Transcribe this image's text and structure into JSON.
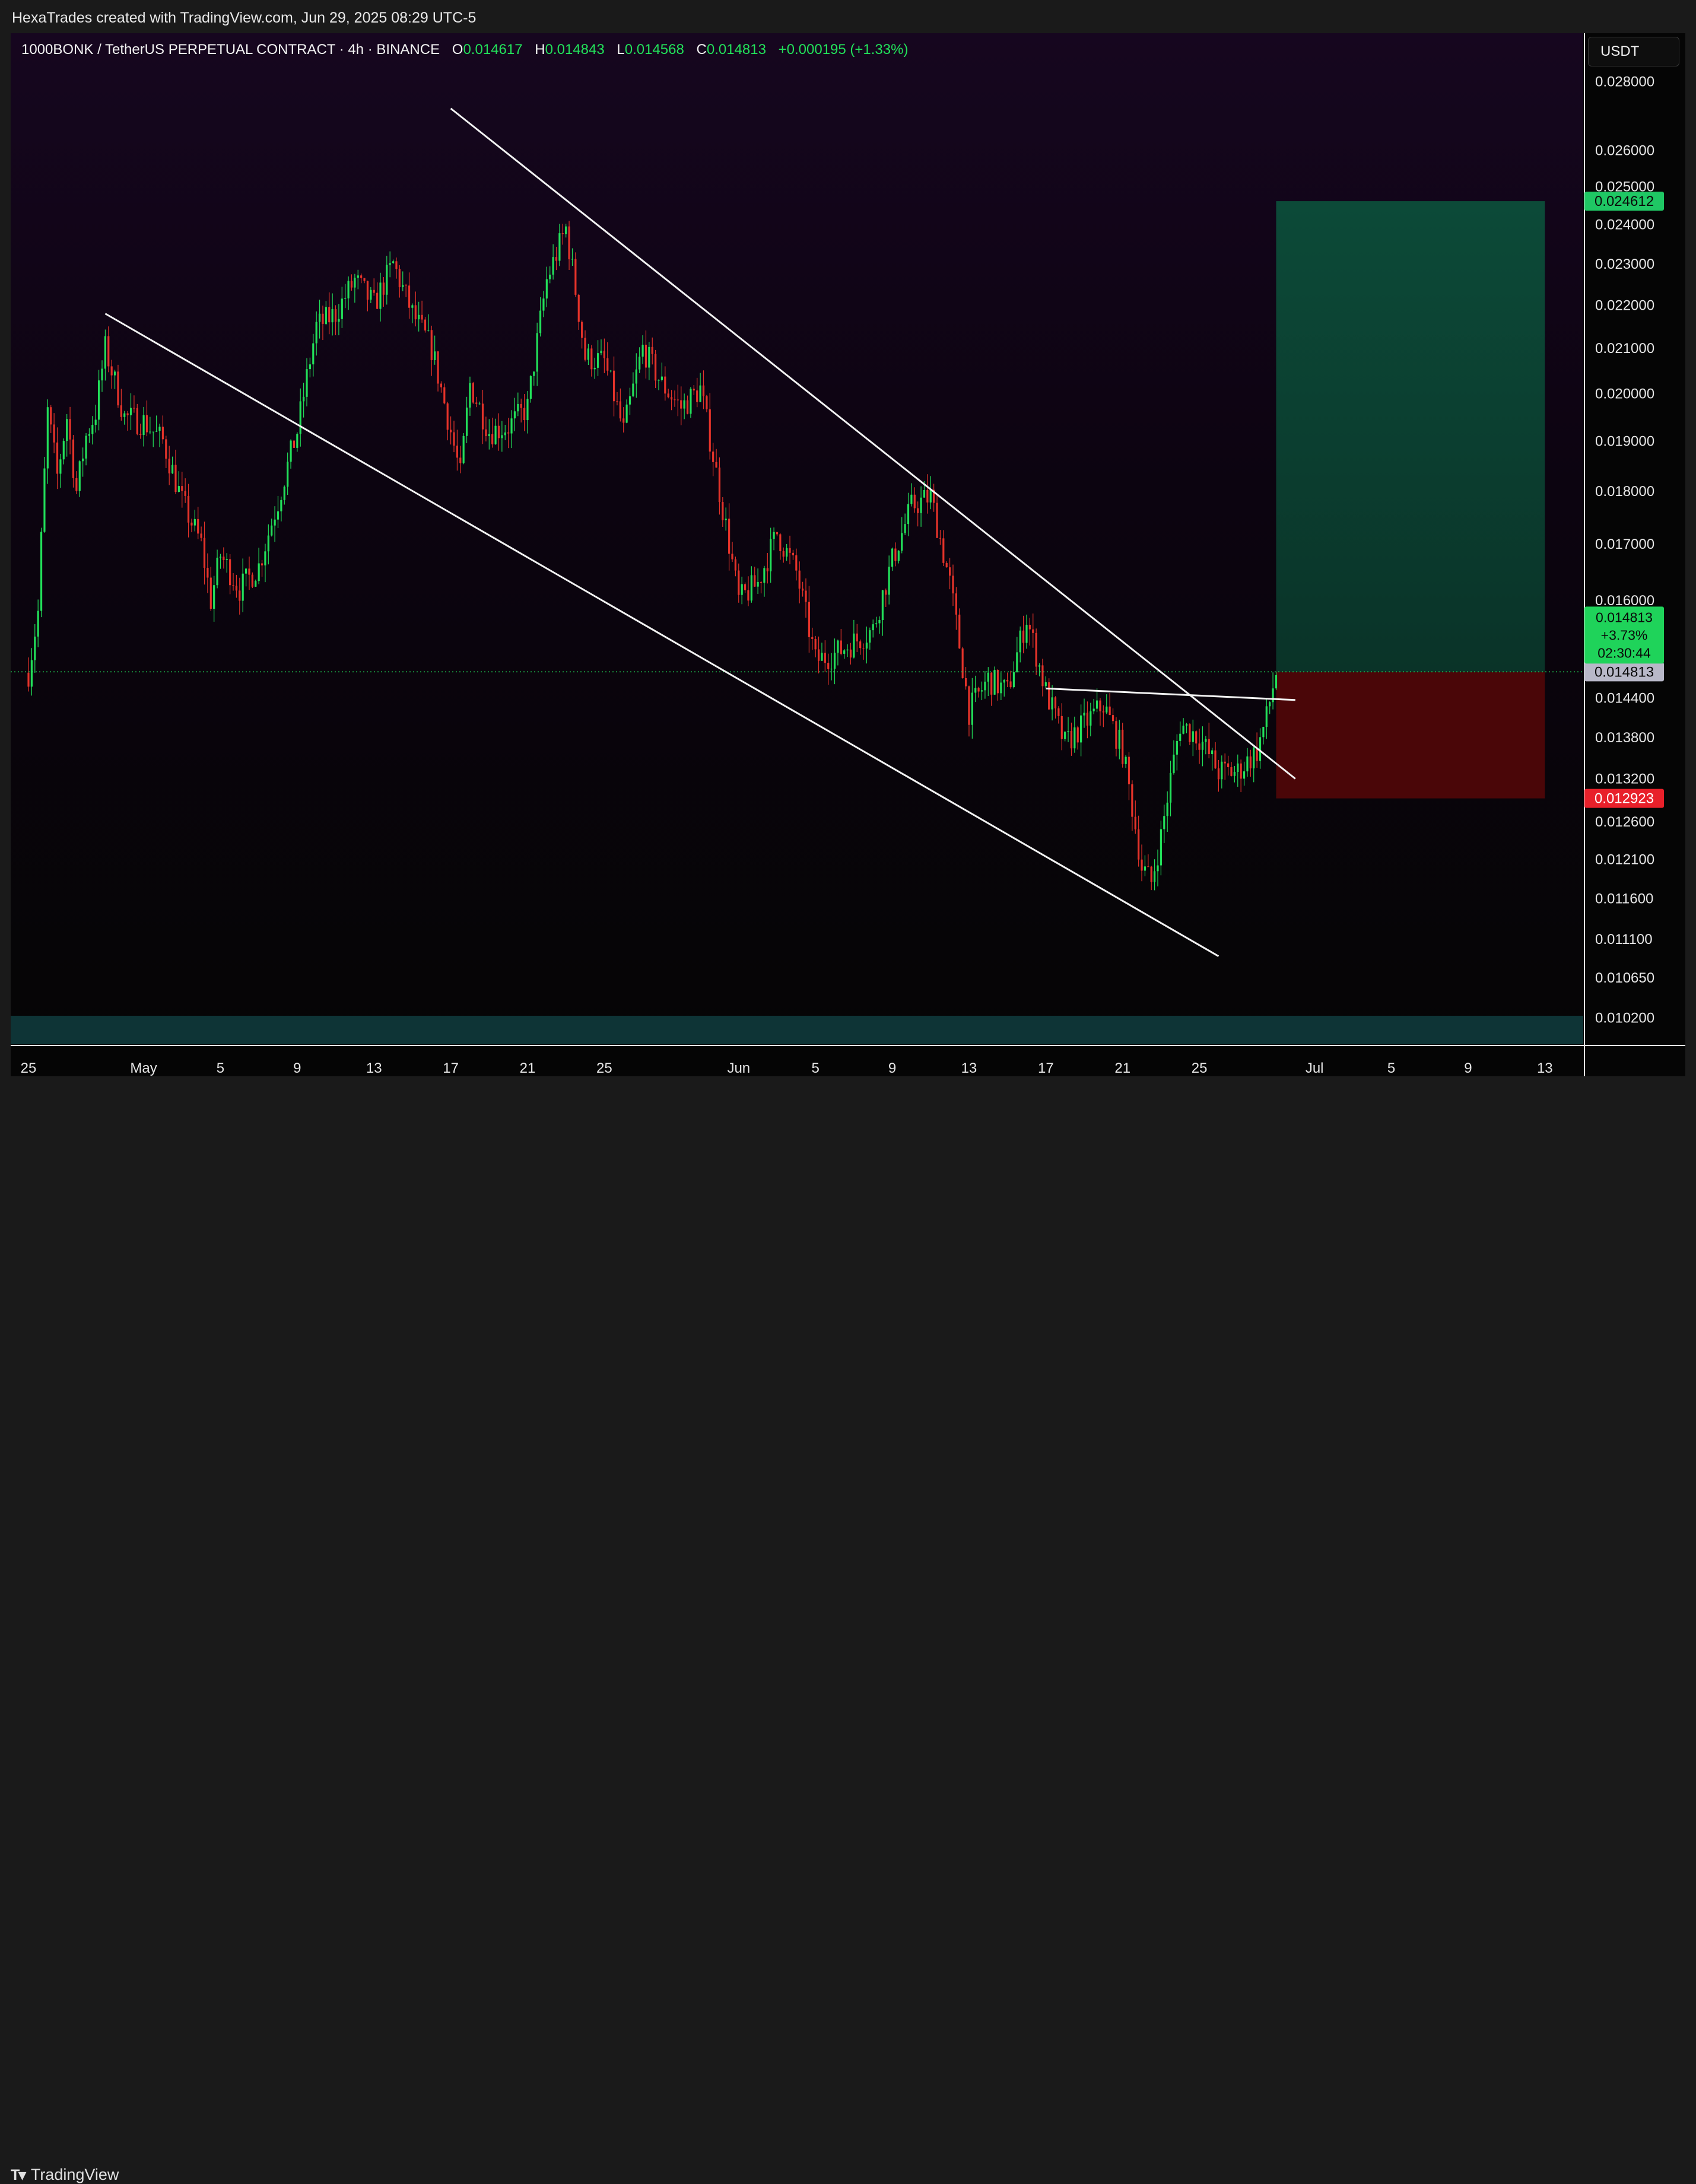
{
  "header": {
    "credit": "HexaTrades created with TradingView.com, Jun 29, 2025 08:29 UTC-5"
  },
  "legend": {
    "symbol": "1000BONK / TetherUS PERPETUAL CONTRACT · 4h · BINANCE",
    "o_label": "O",
    "o": "0.014617",
    "h_label": "H",
    "h": "0.014843",
    "l_label": "L",
    "l": "0.014568",
    "c_label": "C",
    "c": "0.014813",
    "change": "+0.000195 (+1.33%)"
  },
  "toolbar": {
    "currency": "USDT"
  },
  "footer": {
    "brand": "TradingView",
    "logo_icon": "tradingview-logo-icon"
  },
  "colors": {
    "up": "#22e05a",
    "down": "#e5332a",
    "bg_top": "#14061f",
    "bg_bottom": "#050505",
    "target_zone": "#0b4a35",
    "stop_zone": "#4a0608",
    "trendline": "#f2f2f2"
  },
  "chart_data": {
    "type": "candlestick",
    "timeframe": "4h",
    "x_ticks": [
      {
        "date": "2025-04-25",
        "label": "25"
      },
      {
        "date": "2025-05-01",
        "label": "May"
      },
      {
        "date": "2025-05-05",
        "label": "5"
      },
      {
        "date": "2025-05-09",
        "label": "9"
      },
      {
        "date": "2025-05-13",
        "label": "13"
      },
      {
        "date": "2025-05-17",
        "label": "17"
      },
      {
        "date": "2025-05-21",
        "label": "21"
      },
      {
        "date": "2025-05-25",
        "label": "25"
      },
      {
        "date": "2025-06-01",
        "label": "Jun"
      },
      {
        "date": "2025-06-05",
        "label": "5"
      },
      {
        "date": "2025-06-09",
        "label": "9"
      },
      {
        "date": "2025-06-13",
        "label": "13"
      },
      {
        "date": "2025-06-17",
        "label": "17"
      },
      {
        "date": "2025-06-21",
        "label": "21"
      },
      {
        "date": "2025-06-25",
        "label": "25"
      },
      {
        "date": "2025-07-01",
        "label": "Jul"
      },
      {
        "date": "2025-07-05",
        "label": "5"
      },
      {
        "date": "2025-07-09",
        "label": "9"
      },
      {
        "date": "2025-07-13",
        "label": "13"
      }
    ],
    "x_range": [
      "2025-04-25",
      "2025-07-15"
    ],
    "y_scale": "log",
    "y_ticks": [
      "0.028000",
      "0.026000",
      "0.025000",
      "0.024000",
      "0.023000",
      "0.022000",
      "0.021000",
      "0.020000",
      "0.019000",
      "0.018000",
      "0.017000",
      "0.016000",
      "0.014400",
      "0.013800",
      "0.013200",
      "0.012600",
      "0.012100",
      "0.011600",
      "0.011100",
      "0.010650",
      "0.010200"
    ],
    "y_range": [
      0.0099,
      0.0295
    ],
    "price_path": [
      [
        "2025-04-25",
        0.0148
      ],
      [
        "2025-04-25T12:00",
        0.0158
      ],
      [
        "2025-04-26",
        0.0196
      ],
      [
        "2025-04-26T12:00",
        0.0183
      ],
      [
        "2025-04-27",
        0.0195
      ],
      [
        "2025-04-27T12:00",
        0.018
      ],
      [
        "2025-04-28",
        0.0191
      ],
      [
        "2025-04-28T12:00",
        0.0196
      ],
      [
        "2025-04-29",
        0.021
      ],
      [
        "2025-04-30",
        0.0195
      ],
      [
        "2025-05-01",
        0.0194
      ],
      [
        "2025-05-02",
        0.019
      ],
      [
        "2025-05-03",
        0.0178
      ],
      [
        "2025-05-04",
        0.017
      ],
      [
        "2025-05-04T12:00",
        0.016
      ],
      [
        "2025-05-05",
        0.0168
      ],
      [
        "2025-05-06",
        0.0162
      ],
      [
        "2025-05-07",
        0.0166
      ],
      [
        "2025-05-08",
        0.0178
      ],
      [
        "2025-05-09",
        0.0192
      ],
      [
        "2025-05-10",
        0.0215
      ],
      [
        "2025-05-11",
        0.0218
      ],
      [
        "2025-05-12",
        0.0226
      ],
      [
        "2025-05-13",
        0.022
      ],
      [
        "2025-05-14",
        0.023
      ],
      [
        "2025-05-15",
        0.0218
      ],
      [
        "2025-05-16",
        0.021
      ],
      [
        "2025-05-17",
        0.0192
      ],
      [
        "2025-05-17T12:00",
        0.0183
      ],
      [
        "2025-05-18",
        0.0202
      ],
      [
        "2025-05-19",
        0.0192
      ],
      [
        "2025-05-20",
        0.0193
      ],
      [
        "2025-05-21",
        0.0197
      ],
      [
        "2025-05-22",
        0.0226
      ],
      [
        "2025-05-23",
        0.0239
      ],
      [
        "2025-05-24",
        0.0208
      ],
      [
        "2025-05-25",
        0.0207
      ],
      [
        "2025-05-26",
        0.0192
      ],
      [
        "2025-05-27",
        0.021
      ],
      [
        "2025-05-28",
        0.0202
      ],
      [
        "2025-05-29",
        0.0197
      ],
      [
        "2025-05-30",
        0.0201
      ],
      [
        "2025-05-31",
        0.018
      ],
      [
        "2025-06-01",
        0.016
      ],
      [
        "2025-06-02",
        0.0163
      ],
      [
        "2025-06-03",
        0.0172
      ],
      [
        "2025-06-04",
        0.0165
      ],
      [
        "2025-06-05",
        0.015
      ],
      [
        "2025-06-06",
        0.0151
      ],
      [
        "2025-06-07",
        0.0153
      ],
      [
        "2025-06-08",
        0.0155
      ],
      [
        "2025-06-09",
        0.0167
      ],
      [
        "2025-06-10",
        0.0177
      ],
      [
        "2025-06-11",
        0.0179
      ],
      [
        "2025-06-12",
        0.0163
      ],
      [
        "2025-06-13",
        0.0142
      ],
      [
        "2025-06-14",
        0.0147
      ],
      [
        "2025-06-15",
        0.0145
      ],
      [
        "2025-06-16",
        0.0157
      ],
      [
        "2025-06-17",
        0.0145
      ],
      [
        "2025-06-18",
        0.0137
      ],
      [
        "2025-06-19",
        0.014
      ],
      [
        "2025-06-20",
        0.0143
      ],
      [
        "2025-06-21",
        0.0136
      ],
      [
        "2025-06-22",
        0.012
      ],
      [
        "2025-06-22T12:00",
        0.0118
      ],
      [
        "2025-06-23",
        0.0124
      ],
      [
        "2025-06-24",
        0.014
      ],
      [
        "2025-06-25",
        0.0138
      ],
      [
        "2025-06-26",
        0.0133
      ],
      [
        "2025-06-27",
        0.0133
      ],
      [
        "2025-06-28",
        0.0136
      ],
      [
        "2025-06-28T12:00",
        0.0141
      ],
      [
        "2025-06-29",
        0.014813
      ]
    ],
    "last_price": 0.014813,
    "last_price_label": "0.014813",
    "last_change": "+3.73%",
    "countdown": "02:30:44",
    "price_line_label": "0.014813",
    "trendlines": [
      {
        "name": "channel-upper",
        "from": [
          "2025-05-17",
          0.0272
        ],
        "to": [
          "2025-06-30",
          0.0132
        ]
      },
      {
        "name": "channel-lower",
        "from": [
          "2025-04-29",
          0.0218
        ],
        "to": [
          "2025-06-26",
          0.0109
        ]
      },
      {
        "name": "horizontal-resistance",
        "from": [
          "2025-06-17",
          0.01455
        ],
        "to": [
          "2025-06-30",
          0.01437
        ]
      }
    ],
    "position": {
      "type": "long",
      "entry": 0.014813,
      "target": 0.024612,
      "target_label": "0.024612",
      "stop": 0.012923,
      "stop_label": "0.012923",
      "start_date": "2025-06-29",
      "end_date": "2025-07-13"
    }
  }
}
